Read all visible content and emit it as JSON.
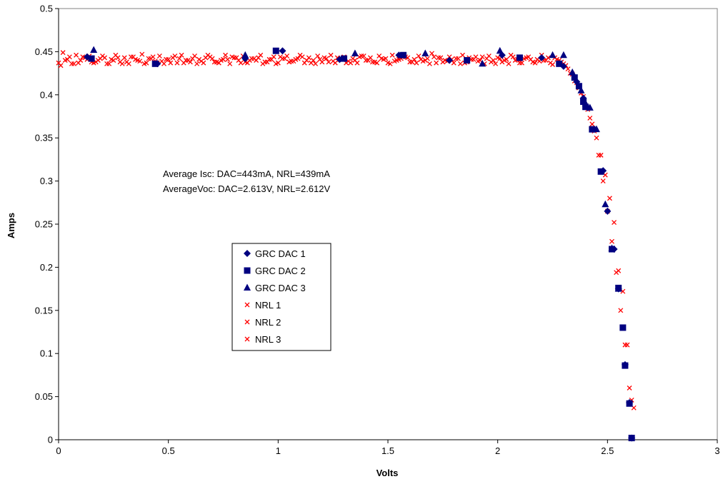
{
  "chart_data": {
    "type": "scatter",
    "title": "",
    "xlabel": "Volts",
    "ylabel": "Amps",
    "xlim": [
      0,
      3
    ],
    "ylim": [
      0,
      0.5
    ],
    "x_ticks": [
      "0",
      "0.5",
      "1",
      "1.5",
      "2",
      "2.5",
      "3"
    ],
    "y_ticks": [
      "0",
      "0.05",
      "0.1",
      "0.15",
      "0.2",
      "0.25",
      "0.3",
      "0.35",
      "0.4",
      "0.45",
      "0.5"
    ],
    "grid": false,
    "legend_position": "center-left",
    "annotations": [
      "Average Isc: DAC=443mA, NRL=439mA",
      "AverageVoc: DAC=2.613V, NRL=2.612V"
    ],
    "series": [
      {
        "name": "GRC DAC 1",
        "marker": "diamond",
        "color": "#000080",
        "x": [
          0.13,
          0.45,
          0.85,
          1.02,
          1.28,
          1.55,
          1.78,
          2.02,
          2.2,
          2.3,
          2.36,
          2.39,
          2.41,
          2.44,
          2.48,
          2.5,
          2.53,
          2.55,
          2.58,
          2.6,
          2.61
        ],
        "y": [
          0.444,
          0.436,
          0.442,
          0.451,
          0.441,
          0.446,
          0.44,
          0.446,
          0.443,
          0.433,
          0.415,
          0.396,
          0.385,
          0.36,
          0.312,
          0.265,
          0.221,
          0.175,
          0.087,
          0.043,
          0.002
        ]
      },
      {
        "name": "GRC DAC 2",
        "marker": "square",
        "color": "#000080",
        "x": [
          0.15,
          0.44,
          0.99,
          1.3,
          1.57,
          1.86,
          2.1,
          2.28,
          2.35,
          2.37,
          2.39,
          2.4,
          2.43,
          2.47,
          2.52,
          2.55,
          2.57,
          2.58,
          2.6,
          2.61
        ],
        "y": [
          0.442,
          0.436,
          0.451,
          0.442,
          0.446,
          0.44,
          0.443,
          0.436,
          0.42,
          0.41,
          0.392,
          0.386,
          0.36,
          0.311,
          0.221,
          0.176,
          0.13,
          0.086,
          0.042,
          0.002
        ]
      },
      {
        "name": "GRC DAC 3",
        "marker": "triangle",
        "color": "#000080",
        "x": [
          0.16,
          0.85,
          1.35,
          1.67,
          1.93,
          2.01,
          2.25,
          2.3,
          2.34,
          2.38,
          2.4,
          2.42,
          2.45,
          2.49,
          2.52,
          2.55
        ],
        "y": [
          0.452,
          0.446,
          0.448,
          0.448,
          0.436,
          0.451,
          0.446,
          0.446,
          0.426,
          0.405,
          0.39,
          0.385,
          0.36,
          0.273,
          0.222,
          0.175
        ]
      },
      {
        "name": "NRL 1",
        "marker": "x",
        "color": "#ff0000",
        "x": [
          0.0,
          0.02,
          0.04,
          0.06,
          0.08,
          0.1,
          0.12,
          0.14,
          0.16,
          0.18,
          0.2,
          0.22,
          0.24,
          0.26,
          0.28,
          0.3,
          0.32,
          0.34,
          0.36,
          0.38,
          0.4,
          0.42,
          0.44,
          0.46,
          0.48,
          0.5,
          0.52,
          0.54,
          0.56,
          0.58,
          0.6,
          0.62,
          0.64,
          0.66,
          0.68,
          0.7,
          0.72,
          0.74,
          0.76,
          0.78,
          0.8,
          0.82,
          0.84,
          0.86,
          0.88,
          0.9,
          0.92,
          0.94,
          0.96,
          0.98,
          1.0,
          1.02,
          1.04,
          1.06,
          1.08,
          1.1,
          1.12,
          1.14,
          1.16,
          1.18,
          1.2,
          1.22,
          1.24,
          1.26,
          1.28,
          1.3,
          1.32,
          1.34,
          1.36,
          1.38,
          1.4,
          1.42,
          1.44,
          1.46,
          1.48,
          1.5,
          1.52,
          1.54,
          1.56,
          1.58,
          1.6,
          1.62,
          1.64,
          1.66,
          1.68,
          1.7,
          1.72,
          1.74,
          1.76,
          1.78,
          1.8,
          1.82,
          1.84,
          1.86,
          1.88,
          1.9,
          1.92,
          1.94,
          1.96,
          1.98,
          2.0,
          2.02,
          2.04,
          2.06,
          2.08,
          2.1,
          2.12,
          2.14,
          2.16,
          2.18,
          2.2,
          2.22,
          2.24,
          2.26,
          2.28,
          2.3,
          2.32,
          2.34,
          2.36,
          2.38,
          2.4,
          2.42,
          2.44,
          2.46,
          2.48,
          2.5,
          2.52,
          2.54,
          2.56,
          2.58,
          2.6,
          2.62
        ],
        "y": [
          0.437,
          0.449,
          0.441,
          0.436,
          0.446,
          0.44,
          0.443,
          0.445,
          0.437,
          0.44,
          0.445,
          0.436,
          0.441,
          0.446,
          0.438,
          0.443,
          0.436,
          0.444,
          0.44,
          0.447,
          0.437,
          0.442,
          0.439,
          0.445,
          0.436,
          0.441,
          0.443,
          0.437,
          0.446,
          0.44,
          0.438,
          0.445,
          0.441,
          0.437,
          0.446,
          0.442,
          0.438,
          0.44,
          0.446,
          0.436,
          0.443,
          0.44,
          0.445,
          0.437,
          0.442,
          0.44,
          0.446,
          0.438,
          0.441,
          0.444,
          0.437,
          0.442,
          0.445,
          0.439,
          0.441,
          0.446,
          0.437,
          0.443,
          0.44,
          0.445,
          0.438,
          0.442,
          0.446,
          0.437,
          0.441,
          0.444,
          0.439,
          0.442,
          0.437,
          0.445,
          0.44,
          0.443,
          0.438,
          0.445,
          0.441,
          0.437,
          0.446,
          0.44,
          0.442,
          0.444,
          0.438,
          0.441,
          0.445,
          0.439,
          0.442,
          0.448,
          0.437,
          0.443,
          0.44,
          0.444,
          0.437,
          0.442,
          0.446,
          0.438,
          0.441,
          0.444,
          0.44,
          0.436,
          0.445,
          0.44,
          0.443,
          0.438,
          0.441,
          0.446,
          0.44,
          0.437,
          0.442,
          0.444,
          0.438,
          0.441,
          0.446,
          0.44,
          0.437,
          0.443,
          0.44,
          0.436,
          0.43,
          0.424,
          0.414,
          0.402,
          0.386,
          0.373,
          0.358,
          0.33,
          0.3,
          0.265,
          0.23,
          0.194,
          0.15,
          0.11,
          0.06,
          0.037
        ]
      },
      {
        "name": "NRL 2",
        "marker": "x",
        "color": "#ff0000",
        "x": [
          0.01,
          0.05,
          0.09,
          0.13,
          0.17,
          0.21,
          0.25,
          0.29,
          0.33,
          0.37,
          0.41,
          0.45,
          0.49,
          0.53,
          0.57,
          0.61,
          0.65,
          0.69,
          0.73,
          0.77,
          0.81,
          0.85,
          0.89,
          0.93,
          0.97,
          1.01,
          1.05,
          1.09,
          1.13,
          1.17,
          1.21,
          1.25,
          1.29,
          1.33,
          1.37,
          1.41,
          1.45,
          1.49,
          1.53,
          1.57,
          1.61,
          1.65,
          1.69,
          1.73,
          1.77,
          1.81,
          1.85,
          1.89,
          1.93,
          1.97,
          2.01,
          2.05,
          2.09,
          2.13,
          2.17,
          2.21,
          2.25,
          2.29,
          2.33,
          2.37,
          2.41,
          2.45,
          2.49,
          2.53,
          2.57,
          2.61
        ],
        "y": [
          0.434,
          0.444,
          0.437,
          0.441,
          0.438,
          0.443,
          0.44,
          0.436,
          0.444,
          0.439,
          0.442,
          0.437,
          0.441,
          0.445,
          0.437,
          0.442,
          0.439,
          0.444,
          0.437,
          0.441,
          0.443,
          0.438,
          0.442,
          0.436,
          0.441,
          0.444,
          0.438,
          0.442,
          0.44,
          0.436,
          0.443,
          0.439,
          0.441,
          0.437,
          0.444,
          0.44,
          0.437,
          0.442,
          0.439,
          0.444,
          0.438,
          0.441,
          0.436,
          0.443,
          0.439,
          0.442,
          0.437,
          0.441,
          0.444,
          0.438,
          0.442,
          0.436,
          0.441,
          0.443,
          0.437,
          0.44,
          0.435,
          0.438,
          0.425,
          0.408,
          0.383,
          0.35,
          0.307,
          0.252,
          0.172,
          0.046
        ]
      },
      {
        "name": "NRL 3",
        "marker": "x",
        "color": "#ff0000",
        "x": [
          0.03,
          0.07,
          0.11,
          0.15,
          0.19,
          0.23,
          0.27,
          0.31,
          0.35,
          0.39,
          0.43,
          0.47,
          0.51,
          0.55,
          0.59,
          0.63,
          0.67,
          0.71,
          0.75,
          0.79,
          0.83,
          0.87,
          0.91,
          0.95,
          0.99,
          1.03,
          1.07,
          1.11,
          1.15,
          1.19,
          1.23,
          1.27,
          1.31,
          1.35,
          1.39,
          1.43,
          1.47,
          1.51,
          1.55,
          1.59,
          1.63,
          1.67,
          1.71,
          1.75,
          1.79,
          1.83,
          1.87,
          1.91,
          1.95,
          1.99,
          2.03,
          2.07,
          2.11,
          2.15,
          2.19,
          2.23,
          2.27,
          2.31,
          2.35,
          2.39,
          2.43,
          2.47,
          2.51,
          2.55,
          2.59
        ],
        "y": [
          0.44,
          0.436,
          0.444,
          0.438,
          0.442,
          0.436,
          0.443,
          0.438,
          0.441,
          0.436,
          0.444,
          0.439,
          0.437,
          0.442,
          0.44,
          0.436,
          0.443,
          0.438,
          0.441,
          0.444,
          0.437,
          0.44,
          0.443,
          0.438,
          0.436,
          0.442,
          0.439,
          0.444,
          0.437,
          0.441,
          0.438,
          0.443,
          0.437,
          0.44,
          0.445,
          0.438,
          0.442,
          0.436,
          0.441,
          0.443,
          0.437,
          0.44,
          0.444,
          0.438,
          0.441,
          0.436,
          0.443,
          0.439,
          0.442,
          0.436,
          0.44,
          0.444,
          0.437,
          0.441,
          0.439,
          0.443,
          0.441,
          0.434,
          0.416,
          0.398,
          0.366,
          0.33,
          0.28,
          0.196,
          0.11
        ]
      }
    ]
  }
}
